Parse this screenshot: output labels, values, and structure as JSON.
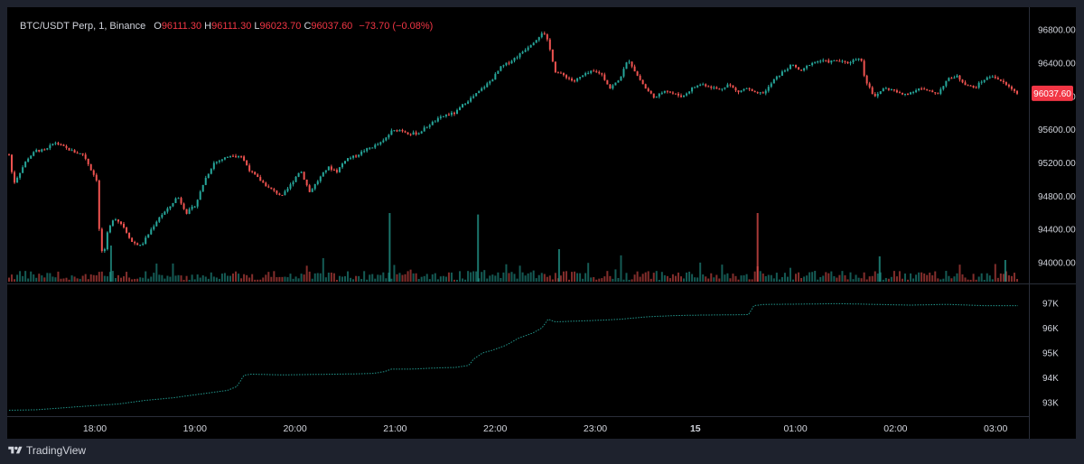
{
  "legend": {
    "symbol": "BTC/USDT Perp, 1, Binance",
    "o_label": "O",
    "o_value": "96111.30",
    "h_label": "H",
    "h_value": "96111.30",
    "l_label": "L",
    "l_value": "96023.70",
    "c_label": "C",
    "c_value": "96037.60",
    "change": "−73.70 (−0.08%)"
  },
  "footer": {
    "brand": "TradingView"
  },
  "price_badge": "96037.60",
  "colors": {
    "up": "#26a69a",
    "down": "#ef5350",
    "badge": "#f23645",
    "background": "#000000"
  },
  "chart_data": [
    {
      "type": "candlestick",
      "title": "BTC/USDT Perp, 1, Binance",
      "x_tick_labels": [
        "18:00",
        "19:00",
        "20:00",
        "21:00",
        "22:00",
        "23:00",
        "15",
        "01:00",
        "02:00",
        "03:00"
      ],
      "y_tick_labels": [
        "96800.00",
        "96400.00",
        "96000.00",
        "95600.00",
        "95200.00",
        "94800.00",
        "94400.00",
        "94000.00"
      ],
      "ylim": [
        93750,
        96900
      ],
      "last_price": 96037.6,
      "anchor_points": [
        {
          "t": 0,
          "p": 95300
        },
        {
          "t": 5,
          "p": 94950
        },
        {
          "t": 10,
          "p": 95050
        },
        {
          "t": 20,
          "p": 95250
        },
        {
          "t": 30,
          "p": 95350
        },
        {
          "t": 40,
          "p": 95350
        },
        {
          "t": 50,
          "p": 95450
        },
        {
          "t": 62,
          "p": 95380
        },
        {
          "t": 72,
          "p": 95330
        },
        {
          "t": 82,
          "p": 95300
        },
        {
          "t": 90,
          "p": 95120
        },
        {
          "t": 96,
          "p": 95000
        },
        {
          "t": 100,
          "p": 94200
        },
        {
          "t": 104,
          "p": 94080
        },
        {
          "t": 108,
          "p": 94350
        },
        {
          "t": 115,
          "p": 94550
        },
        {
          "t": 125,
          "p": 94450
        },
        {
          "t": 135,
          "p": 94250
        },
        {
          "t": 145,
          "p": 94200
        },
        {
          "t": 155,
          "p": 94380
        },
        {
          "t": 165,
          "p": 94550
        },
        {
          "t": 175,
          "p": 94650
        },
        {
          "t": 185,
          "p": 94800
        },
        {
          "t": 195,
          "p": 94600
        },
        {
          "t": 205,
          "p": 94700
        },
        {
          "t": 215,
          "p": 95000
        },
        {
          "t": 225,
          "p": 95200
        },
        {
          "t": 235,
          "p": 95250
        },
        {
          "t": 245,
          "p": 95300
        },
        {
          "t": 255,
          "p": 95280
        },
        {
          "t": 265,
          "p": 95100
        },
        {
          "t": 275,
          "p": 95000
        },
        {
          "t": 285,
          "p": 94900
        },
        {
          "t": 300,
          "p": 94800
        },
        {
          "t": 310,
          "p": 94950
        },
        {
          "t": 320,
          "p": 95120
        },
        {
          "t": 330,
          "p": 94850
        },
        {
          "t": 340,
          "p": 95000
        },
        {
          "t": 350,
          "p": 95150
        },
        {
          "t": 360,
          "p": 95100
        },
        {
          "t": 370,
          "p": 95250
        },
        {
          "t": 380,
          "p": 95280
        },
        {
          "t": 390,
          "p": 95350
        },
        {
          "t": 400,
          "p": 95400
        },
        {
          "t": 410,
          "p": 95450
        },
        {
          "t": 420,
          "p": 95580
        },
        {
          "t": 430,
          "p": 95600
        },
        {
          "t": 440,
          "p": 95550
        },
        {
          "t": 450,
          "p": 95560
        },
        {
          "t": 460,
          "p": 95650
        },
        {
          "t": 470,
          "p": 95720
        },
        {
          "t": 480,
          "p": 95780
        },
        {
          "t": 490,
          "p": 95800
        },
        {
          "t": 500,
          "p": 95920
        },
        {
          "t": 510,
          "p": 96000
        },
        {
          "t": 520,
          "p": 96100
        },
        {
          "t": 530,
          "p": 96200
        },
        {
          "t": 540,
          "p": 96350
        },
        {
          "t": 550,
          "p": 96420
        },
        {
          "t": 560,
          "p": 96500
        },
        {
          "t": 570,
          "p": 96600
        },
        {
          "t": 580,
          "p": 96700
        },
        {
          "t": 586,
          "p": 96780
        },
        {
          "t": 592,
          "p": 96650
        },
        {
          "t": 600,
          "p": 96300
        },
        {
          "t": 610,
          "p": 96250
        },
        {
          "t": 620,
          "p": 96180
        },
        {
          "t": 630,
          "p": 96250
        },
        {
          "t": 640,
          "p": 96300
        },
        {
          "t": 650,
          "p": 96280
        },
        {
          "t": 660,
          "p": 96100
        },
        {
          "t": 670,
          "p": 96200
        },
        {
          "t": 680,
          "p": 96450
        },
        {
          "t": 690,
          "p": 96250
        },
        {
          "t": 700,
          "p": 96080
        },
        {
          "t": 710,
          "p": 95980
        },
        {
          "t": 720,
          "p": 96080
        },
        {
          "t": 730,
          "p": 96030
        },
        {
          "t": 740,
          "p": 96000
        },
        {
          "t": 750,
          "p": 96100
        },
        {
          "t": 760,
          "p": 96150
        },
        {
          "t": 770,
          "p": 96120
        },
        {
          "t": 780,
          "p": 96080
        },
        {
          "t": 790,
          "p": 96150
        },
        {
          "t": 800,
          "p": 96050
        },
        {
          "t": 810,
          "p": 96100
        },
        {
          "t": 820,
          "p": 96030
        },
        {
          "t": 830,
          "p": 96050
        },
        {
          "t": 840,
          "p": 96200
        },
        {
          "t": 850,
          "p": 96300
        },
        {
          "t": 860,
          "p": 96380
        },
        {
          "t": 870,
          "p": 96300
        },
        {
          "t": 880,
          "p": 96400
        },
        {
          "t": 890,
          "p": 96430
        },
        {
          "t": 900,
          "p": 96420
        },
        {
          "t": 910,
          "p": 96430
        },
        {
          "t": 920,
          "p": 96400
        },
        {
          "t": 930,
          "p": 96450
        },
        {
          "t": 935,
          "p": 96480
        },
        {
          "t": 940,
          "p": 96200
        },
        {
          "t": 946,
          "p": 96100
        },
        {
          "t": 950,
          "p": 95980
        },
        {
          "t": 960,
          "p": 96100
        },
        {
          "t": 970,
          "p": 96080
        },
        {
          "t": 980,
          "p": 96020
        },
        {
          "t": 990,
          "p": 96050
        },
        {
          "t": 1000,
          "p": 96100
        },
        {
          "t": 1010,
          "p": 96060
        },
        {
          "t": 1020,
          "p": 96040
        },
        {
          "t": 1030,
          "p": 96200
        },
        {
          "t": 1040,
          "p": 96250
        },
        {
          "t": 1050,
          "p": 96150
        },
        {
          "t": 1060,
          "p": 96100
        },
        {
          "t": 1070,
          "p": 96200
        },
        {
          "t": 1080,
          "p": 96250
        },
        {
          "t": 1090,
          "p": 96180
        },
        {
          "t": 1100,
          "p": 96100
        },
        {
          "t": 1108,
          "p": 96037.6
        }
      ],
      "volume_spikes": [
        {
          "t": 418,
          "frac": 0.95
        },
        {
          "t": 515,
          "frac": 0.93
        },
        {
          "t": 822,
          "frac": 0.95
        },
        {
          "t": 112,
          "frac": 0.5
        },
        {
          "t": 604,
          "frac": 0.45
        },
        {
          "t": 956,
          "frac": 0.35
        },
        {
          "t": 1094,
          "frac": 0.3
        }
      ]
    },
    {
      "type": "line",
      "title": "",
      "y_tick_labels": [
        "97K",
        "96K",
        "95K",
        "94K",
        "93K"
      ],
      "ylim": [
        92500,
        97500
      ],
      "points": [
        {
          "t": 0,
          "v": 92700
        },
        {
          "t": 30,
          "v": 92720
        },
        {
          "t": 60,
          "v": 92800
        },
        {
          "t": 90,
          "v": 92880
        },
        {
          "t": 120,
          "v": 92950
        },
        {
          "t": 150,
          "v": 93100
        },
        {
          "t": 180,
          "v": 93200
        },
        {
          "t": 210,
          "v": 93350
        },
        {
          "t": 240,
          "v": 93500
        },
        {
          "t": 250,
          "v": 93650
        },
        {
          "t": 258,
          "v": 94100
        },
        {
          "t": 265,
          "v": 94150
        },
        {
          "t": 300,
          "v": 94120
        },
        {
          "t": 340,
          "v": 94140
        },
        {
          "t": 380,
          "v": 94160
        },
        {
          "t": 400,
          "v": 94180
        },
        {
          "t": 412,
          "v": 94250
        },
        {
          "t": 420,
          "v": 94350
        },
        {
          "t": 440,
          "v": 94350
        },
        {
          "t": 470,
          "v": 94400
        },
        {
          "t": 490,
          "v": 94420
        },
        {
          "t": 505,
          "v": 94500
        },
        {
          "t": 510,
          "v": 94750
        },
        {
          "t": 520,
          "v": 95000
        },
        {
          "t": 530,
          "v": 95100
        },
        {
          "t": 545,
          "v": 95300
        },
        {
          "t": 560,
          "v": 95600
        },
        {
          "t": 575,
          "v": 95800
        },
        {
          "t": 585,
          "v": 96000
        },
        {
          "t": 592,
          "v": 96350
        },
        {
          "t": 600,
          "v": 96250
        },
        {
          "t": 640,
          "v": 96300
        },
        {
          "t": 670,
          "v": 96350
        },
        {
          "t": 700,
          "v": 96450
        },
        {
          "t": 730,
          "v": 96500
        },
        {
          "t": 760,
          "v": 96520
        },
        {
          "t": 790,
          "v": 96530
        },
        {
          "t": 812,
          "v": 96540
        },
        {
          "t": 818,
          "v": 96900
        },
        {
          "t": 830,
          "v": 96950
        },
        {
          "t": 870,
          "v": 96960
        },
        {
          "t": 910,
          "v": 96980
        },
        {
          "t": 950,
          "v": 96950
        },
        {
          "t": 990,
          "v": 96920
        },
        {
          "t": 1030,
          "v": 96950
        },
        {
          "t": 1070,
          "v": 96900
        },
        {
          "t": 1108,
          "v": 96900
        }
      ]
    }
  ]
}
